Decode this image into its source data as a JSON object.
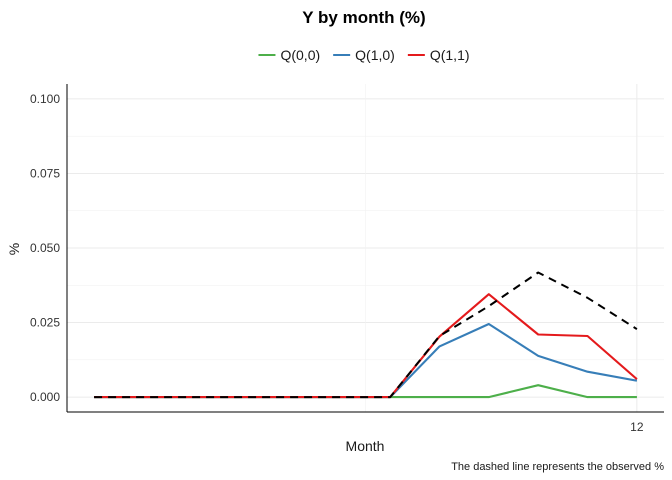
{
  "chart_data": {
    "type": "line",
    "title": "Y by month (%)",
    "xlabel": "Month",
    "ylabel": "%",
    "caption": "The dashed line represents the observed %",
    "x": [
      1,
      2,
      3,
      4,
      5,
      6,
      7,
      8,
      9,
      10,
      11,
      12
    ],
    "xlim": [
      0.45,
      12.55
    ],
    "ylim": [
      -0.005,
      0.105
    ],
    "x_ticks": [
      12
    ],
    "y_ticks": [
      "0.000",
      "0.025",
      "0.050",
      "0.075",
      "0.100"
    ],
    "grid": true,
    "legend_position": "top",
    "series": [
      {
        "name": "Q(0,0)",
        "color": "#4daf4a",
        "dashed": false,
        "values": [
          0,
          0,
          0,
          0,
          0,
          0,
          0,
          0,
          0,
          0.004,
          0,
          0
        ]
      },
      {
        "name": "Q(1,0)",
        "color": "#377eb8",
        "dashed": false,
        "values": [
          0,
          0,
          0,
          0,
          0,
          0,
          0,
          0.017,
          0.0245,
          0.0138,
          0.0085,
          0.0055
        ]
      },
      {
        "name": "Q(1,1)",
        "color": "#e41a1c",
        "dashed": false,
        "values": [
          0,
          0,
          0,
          0,
          0,
          0,
          0,
          0.0203,
          0.0345,
          0.021,
          0.0205,
          0.006
        ]
      },
      {
        "name": "",
        "color": "#000000",
        "dashed": true,
        "values": [
          0,
          0,
          0,
          0,
          0,
          0,
          0,
          0.0205,
          0.0305,
          0.0418,
          0.0333,
          0.0228
        ]
      }
    ]
  }
}
